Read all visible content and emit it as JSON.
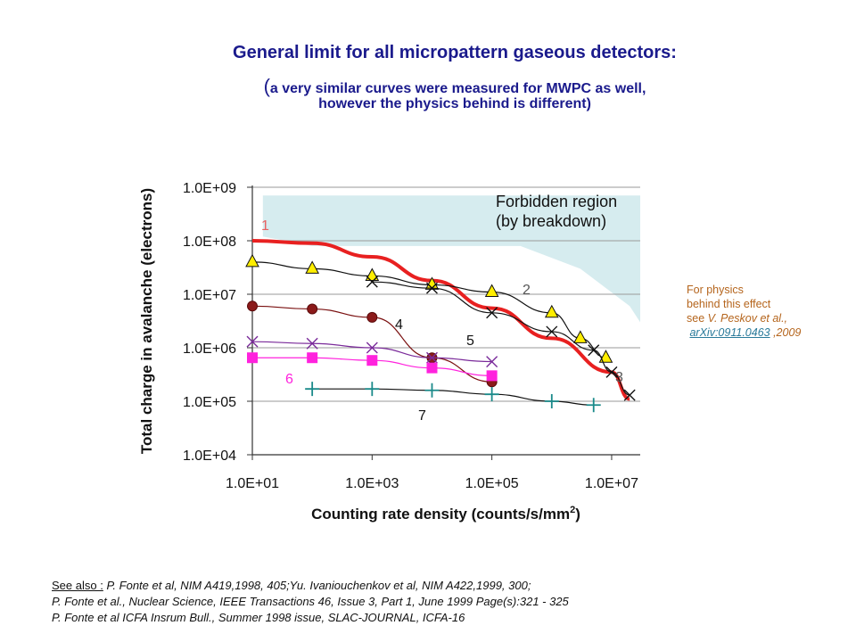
{
  "title": {
    "main": "General limit for all micropattern gaseous detectors:",
    "sub_open": "(",
    "sub1": "a very similar curves were measured for MWPC as well,",
    "sub2": "however the physics behind is different)"
  },
  "side_note": {
    "line1": "For physics",
    "line2": "behind this effect",
    "line3_prefix": "see ",
    "line3_cite": "V. Peskov et al.,",
    "link": "arXiv:0911.0463",
    "year": " ,2009"
  },
  "references": {
    "label": "See also :",
    "line1": " P. Fonte et al, NIM A419,1998, 405;Yu. Ivaniouchenkov et al, NIM A422,1999, 300;",
    "line2": "P. Fonte et al., Nuclear Science, IEEE Transactions 46,  Issue 3,  Part 1,  June 1999 Page(s):321 - 325",
    "line3": "P. Fonte et al ICFA Insrum Bull., Summer 1998 issue, SLAC-JOURNAL, ICFA-16"
  },
  "chart_data": {
    "type": "line",
    "xlabel": "Counting rate density (counts/s/mm",
    "xlabel_sup": "2",
    "xlabel_close": ")",
    "ylabel": "Total charge in avalanche (electrons)",
    "x_scale": "log",
    "y_scale": "log",
    "xlim": [
      10,
      30000000
    ],
    "ylim": [
      10000,
      1000000000
    ],
    "x_ticks": [
      10,
      1000,
      100000,
      10000000
    ],
    "x_tick_labels": [
      "1.0E+01",
      "1.0E+03",
      "1.0E+05",
      "1.0E+07"
    ],
    "y_ticks": [
      10000,
      100000,
      1000000,
      10000000,
      100000000,
      1000000000
    ],
    "y_tick_labels": [
      "1.0E+04",
      "1.0E+05",
      "1.0E+06",
      "1.0E+07",
      "1.0E+08",
      "1.0E+09"
    ],
    "grid": "horizontal",
    "region": {
      "label1": "Forbidden region",
      "label2": "(by breakdown)",
      "color": "#d6ecef",
      "points": [
        [
          15,
          700000000
        ],
        [
          30000000,
          700000000
        ],
        [
          30000000,
          3000000
        ],
        [
          20000000,
          6000000
        ],
        [
          3000000,
          30000000
        ],
        [
          300000,
          80000000
        ],
        [
          100,
          80000000
        ],
        [
          15,
          120000000
        ]
      ]
    },
    "series": [
      {
        "name": "1",
        "color": "#e82020",
        "marker": "none",
        "width": 4,
        "label_color": "#e86060",
        "x": [
          10,
          100,
          1000,
          10000,
          100000,
          1000000,
          10000000,
          20000000
        ],
        "y": [
          100000000,
          90000000,
          50000000,
          18000000,
          5500000,
          1500000,
          350000,
          110000
        ]
      },
      {
        "name": "2",
        "color": "#111111",
        "marker": "triangle",
        "marker_color": "#ffee00",
        "label_color": "#555555",
        "x": [
          10,
          100,
          1000,
          10000,
          100000,
          1000000,
          3000000,
          8000000
        ],
        "y": [
          40000000,
          30000000,
          22000000,
          15000000,
          11000000,
          4500000,
          1500000,
          650000
        ]
      },
      {
        "name": "3",
        "color": "#111111",
        "marker": "x",
        "label_color": "#555555",
        "x": [
          1000,
          10000,
          100000,
          1000000,
          5000000,
          10000000,
          20000000
        ],
        "y": [
          17000000,
          13000000,
          4500000,
          2000000,
          900000,
          350000,
          130000
        ]
      },
      {
        "name": "4",
        "color": "#7a1010",
        "marker": "circle",
        "marker_color": "#8b1a1a",
        "label_color": "#111111",
        "x": [
          10,
          100,
          1000,
          10000,
          100000
        ],
        "y": [
          6000000,
          5300000,
          3700000,
          650000,
          230000
        ]
      },
      {
        "name": "5",
        "color": "#7a2a9a",
        "marker": "x",
        "label_color": "#111111",
        "x": [
          10,
          100,
          1000,
          10000,
          100000
        ],
        "y": [
          1300000,
          1200000,
          1000000,
          650000,
          550000
        ]
      },
      {
        "name": "6",
        "color": "#ff22dd",
        "marker": "square",
        "marker_color": "#ff22dd",
        "label_color": "#ff22dd",
        "x": [
          10,
          100,
          1000,
          10000,
          100000
        ],
        "y": [
          650000,
          650000,
          580000,
          420000,
          300000
        ]
      },
      {
        "name": "7",
        "color": "#111111",
        "marker": "plus",
        "marker_color": "#1a8a8a",
        "label_color": "#111111",
        "x": [
          100,
          1000,
          10000,
          100000,
          1000000,
          5000000
        ],
        "y": [
          170000,
          170000,
          160000,
          135000,
          100000,
          85000
        ]
      }
    ]
  }
}
